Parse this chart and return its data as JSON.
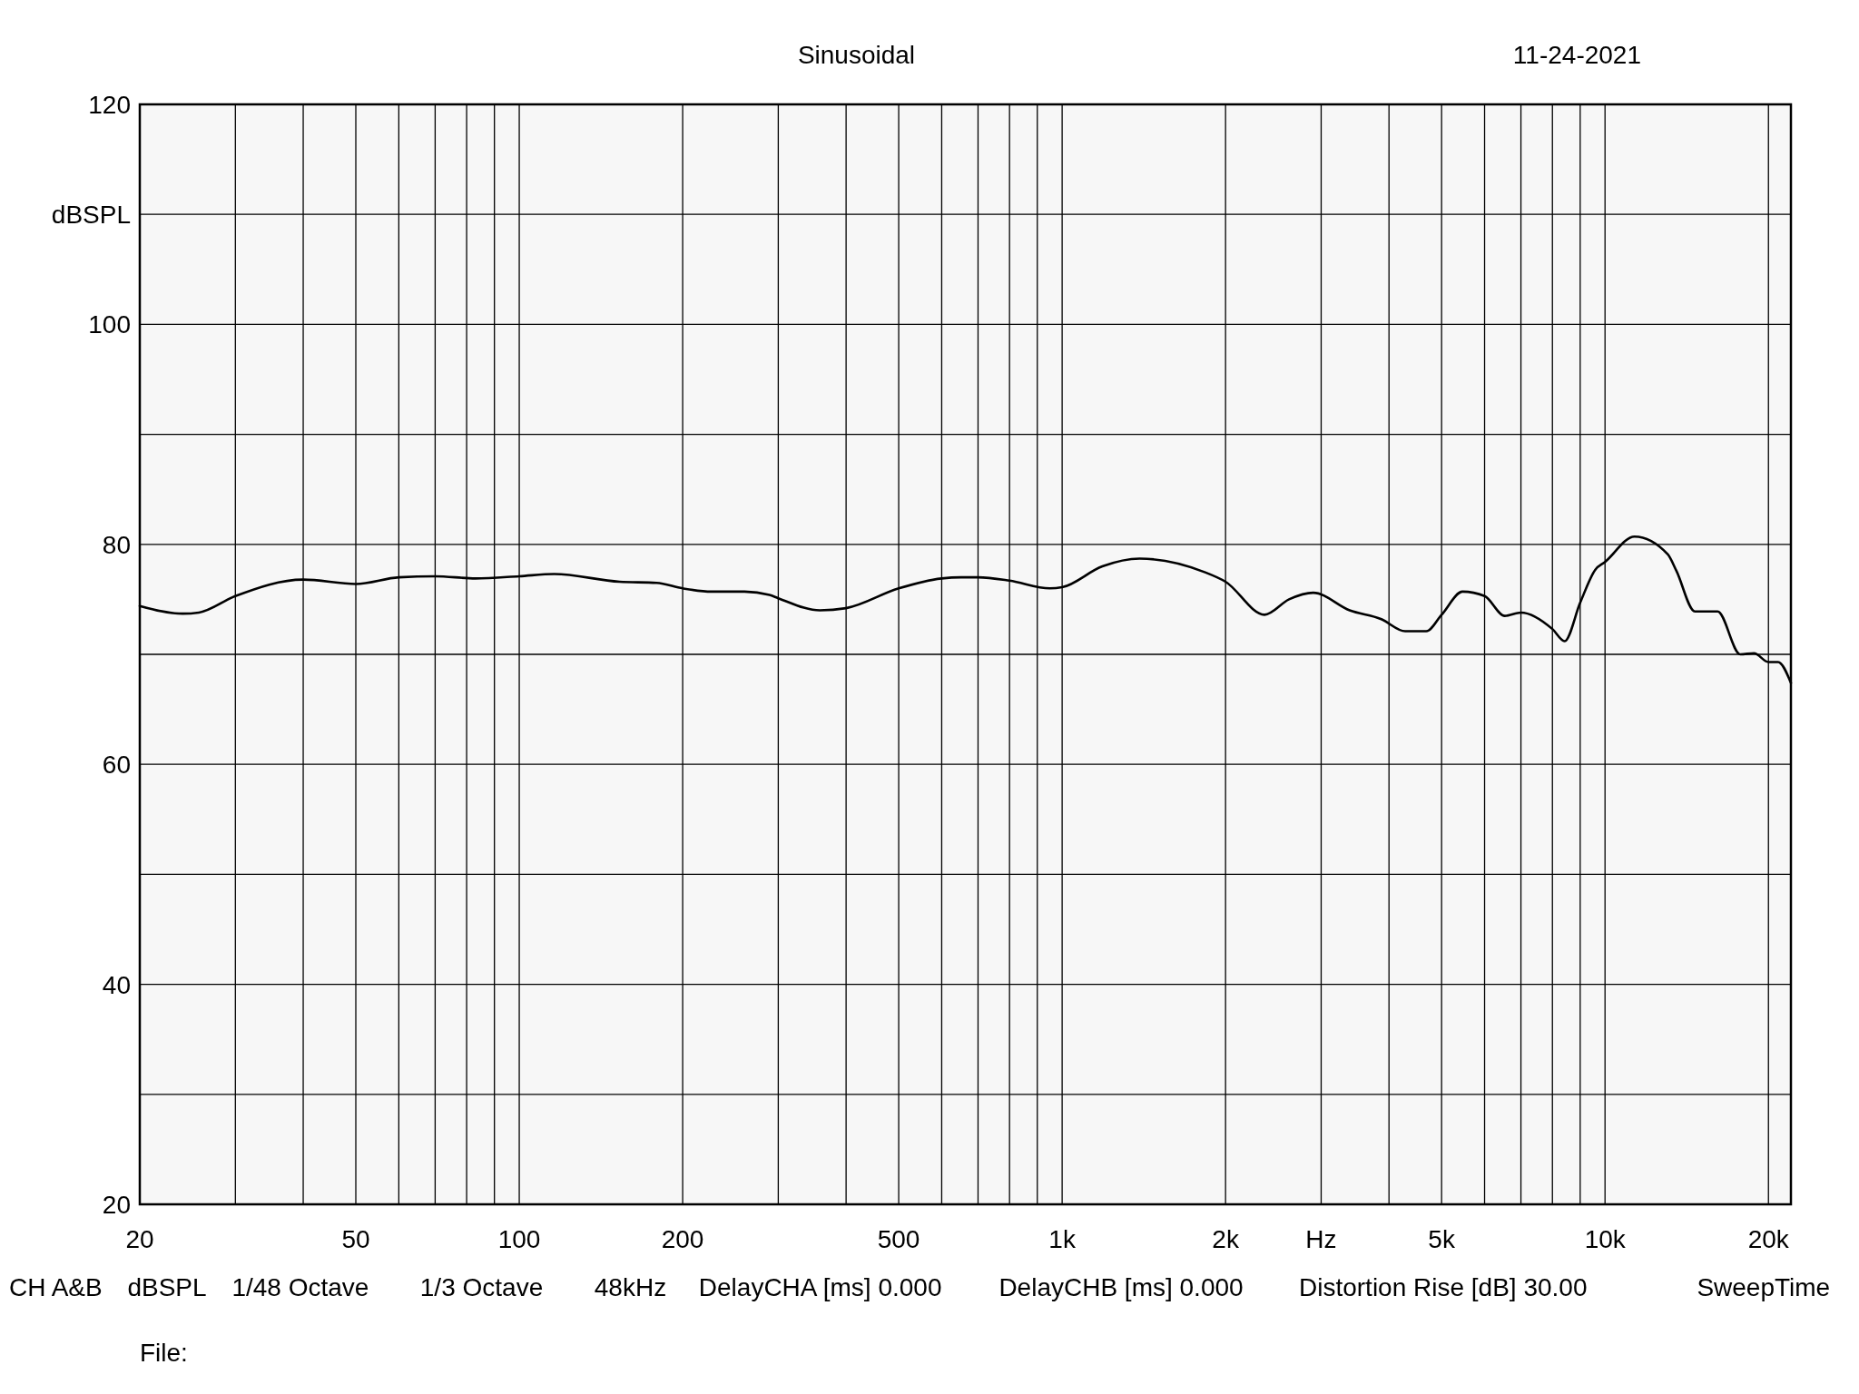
{
  "chart_data": {
    "type": "line",
    "title": "Sinusoidal",
    "xlabel": "Hz",
    "ylabel": "dBSPL",
    "log": "x",
    "grid": true,
    "marker": "none",
    "line_style": "solid",
    "xlim": [
      20,
      22000
    ],
    "ylim": [
      20,
      120
    ],
    "xticks": [
      20,
      {
        "value": 30,
        "label": null
      },
      {
        "value": 40,
        "label": null
      },
      50,
      {
        "value": 60,
        "label": null
      },
      {
        "value": 70,
        "label": null
      },
      {
        "value": 80,
        "label": null
      },
      {
        "value": 90,
        "label": null
      },
      100,
      200,
      {
        "value": 300,
        "label": null
      },
      {
        "value": 400,
        "label": null
      },
      500,
      {
        "value": 600,
        "label": null
      },
      {
        "value": 700,
        "label": null
      },
      {
        "value": 800,
        "label": null
      },
      {
        "value": 900,
        "label": null
      },
      {
        "value": 1000,
        "label": "1k"
      },
      {
        "value": 2000,
        "label": "2k"
      },
      {
        "value": 3000,
        "label": null
      },
      {
        "value": 4000,
        "label": null
      },
      {
        "value": 5000,
        "label": "5k"
      },
      {
        "value": 6000,
        "label": null
      },
      {
        "value": 7000,
        "label": null
      },
      {
        "value": 8000,
        "label": null
      },
      {
        "value": 9000,
        "label": null
      },
      {
        "value": 10000,
        "label": "10k"
      },
      {
        "value": 20000,
        "label": "20k"
      }
    ],
    "yticks": [
      20,
      {
        "value": 30,
        "label": null
      },
      40,
      {
        "value": 50,
        "label": null
      },
      60,
      {
        "value": 70,
        "label": null
      },
      80,
      {
        "value": 90,
        "label": null
      },
      100,
      {
        "value": 110,
        "label": null
      },
      120
    ],
    "series": [
      {
        "color": "#000000",
        "x": [
          20,
          24,
          25.7,
          30,
          40,
          50,
          60,
          70,
          83,
          100,
          116,
          153,
          179,
          200,
          226,
          260,
          289,
          300,
          358,
          400,
          500,
          600,
          652,
          700,
          800,
          949,
          1000,
          1186,
          1389,
          1824,
          2000,
          2359,
          2618,
          2900,
          3385,
          3872,
          4284,
          4685,
          5000,
          5465,
          6000,
          6536,
          7000,
          8000,
          8425,
          9000,
          9597,
          10000,
          11334,
          13043,
          13533,
          14640,
          16120,
          17750,
          18810,
          20000,
          20830,
          22000
        ],
        "values": [
          74.4,
          73.7,
          73.8,
          75.3,
          76.8,
          76.4,
          77.0,
          77.1,
          76.9,
          77.1,
          77.3,
          76.6,
          76.5,
          76.0,
          75.7,
          75.7,
          75.4,
          75.1,
          74.0,
          74.2,
          76.0,
          76.9,
          77.0,
          77.0,
          76.7,
          76.0,
          76.1,
          78.0,
          78.7,
          77.5,
          76.6,
          73.6,
          75.0,
          75.6,
          74.0,
          73.2,
          72.1,
          72.1,
          73.6,
          75.7,
          75.3,
          73.5,
          73.8,
          72.3,
          71.2,
          74.7,
          77.7,
          78.4,
          80.7,
          79.1,
          77.6,
          73.9,
          73.9,
          70.0,
          70.1,
          69.3,
          69.3,
          67.4
        ]
      }
    ],
    "annotations": [
      "11-24-2021",
      "CH A&B",
      "dBSPL",
      "1/48 Octave",
      "1/3 Octave",
      "48kHz",
      "DelayCHA [ms] 0.000",
      "DelayCHB [ms] 0.000",
      "Distortion Rise [dB] 30.00",
      "SweepTime",
      "File:"
    ]
  }
}
